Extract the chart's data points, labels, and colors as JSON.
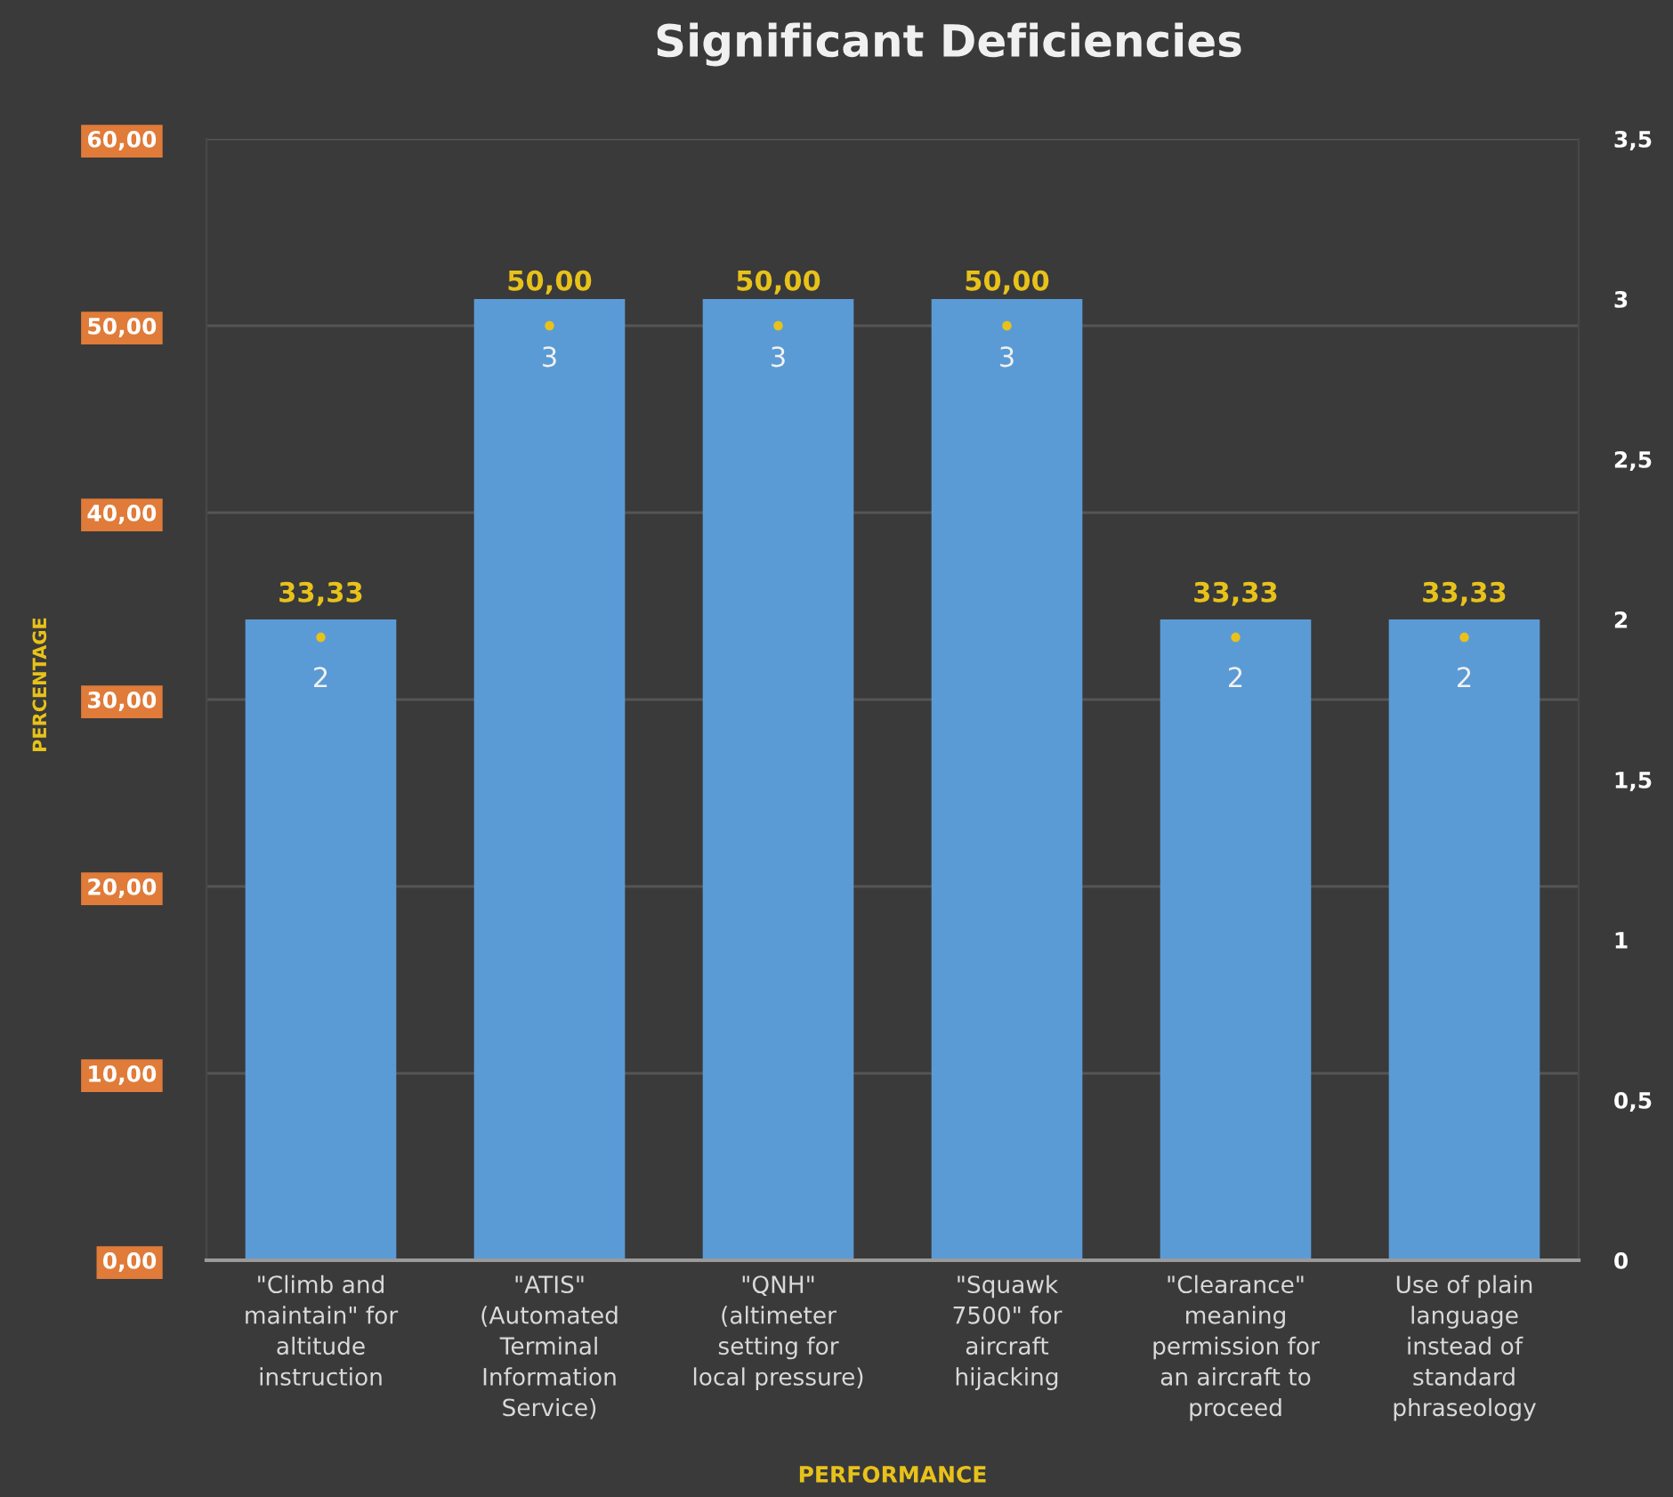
{
  "chart_data": {
    "type": "bar",
    "title": "Significant Deficiencies",
    "xlabel": "PERFORMANCE",
    "ylabel": "PERCENTAGE",
    "categories": [
      "\"Climb and\nmaintain\" for\naltitude\ninstruction",
      "\"ATIS\"\n(Automated\nTerminal\nInformation\nService)",
      "\"QNH\"\n(altimeter\nsetting for\nlocal pressure)",
      "\"Squawk\n7500\" for\naircraft\nhijacking",
      "\"Clearance\"\nmeaning\npermission for\nan aircraft to\nproceed",
      "Use of plain\nlanguage\ninstead of\nstandard\nphraseology"
    ],
    "series": [
      {
        "axis": "y2",
        "color": "#5b9bd5",
        "values": [
          2,
          3,
          3,
          3,
          2,
          2
        ],
        "value_labels": [
          "2",
          "3",
          "3",
          "3",
          "2",
          "2"
        ]
      },
      {
        "type": "scatter",
        "color": "#e8c21a",
        "values": [
          33.33,
          50,
          50,
          50,
          33.33,
          33.33
        ],
        "value_labels": [
          "33,33",
          "50,00",
          "50,00",
          "50,00",
          "33,33",
          "33,33"
        ]
      }
    ],
    "ylim": [
      0,
      60
    ],
    "yticks": [
      {
        "value": 0,
        "label": "0,00"
      },
      {
        "value": 10,
        "label": "10,00"
      },
      {
        "value": 20,
        "label": "20,00"
      },
      {
        "value": 30,
        "label": "30,00"
      },
      {
        "value": 40,
        "label": "40,00"
      },
      {
        "value": 50,
        "label": "50,00"
      },
      {
        "value": 60,
        "label": "60,00"
      }
    ],
    "y2lim": [
      0,
      3.5
    ],
    "y2ticks": [
      0,
      {
        "value": 0.5,
        "label": "0,5"
      },
      1,
      {
        "value": 1.5,
        "label": "1,5"
      },
      2,
      {
        "value": 2.5,
        "label": "2,5"
      },
      3,
      {
        "value": 3.5,
        "label": "3,5"
      }
    ],
    "grid": "y",
    "marker": "circle"
  }
}
